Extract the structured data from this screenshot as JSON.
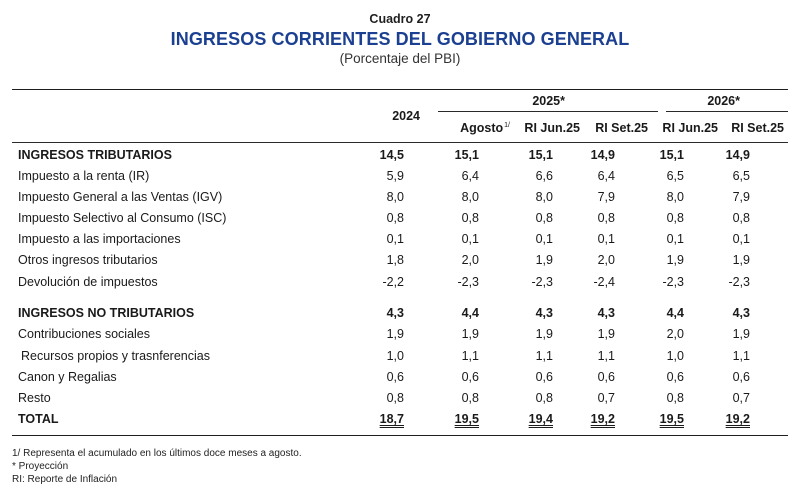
{
  "header": {
    "cuadro": "Cuadro 27",
    "title": "INGRESOS CORRIENTES DEL GOBIERNO GENERAL",
    "subtitle": "(Porcentaje del PBI)"
  },
  "columns": {
    "year_2024": "2024",
    "group_2025": "2025*",
    "group_2026": "2026*",
    "agosto": "Agosto",
    "agosto_note": "1/",
    "ri_jun_25": "RI Jun.25",
    "ri_set_25": "RI Set.25",
    "ri_jun_25_b": "RI Jun.25",
    "ri_set_25_b": "RI Set.25"
  },
  "rows": [
    {
      "label": "INGRESOS TRIBUTARIOS",
      "values": [
        "14,5",
        "15,1",
        "15,1",
        "14,9",
        "15,1",
        "14,9"
      ]
    },
    {
      "label": "Impuesto a la renta (IR)",
      "values": [
        "5,9",
        "6,4",
        "6,6",
        "6,4",
        "6,5",
        "6,5"
      ]
    },
    {
      "label": "Impuesto General a las Ventas (IGV)",
      "values": [
        "8,0",
        "8,0",
        "8,0",
        "7,9",
        "8,0",
        "7,9"
      ]
    },
    {
      "label": "Impuesto Selectivo al Consumo (ISC)",
      "values": [
        "0,8",
        "0,8",
        "0,8",
        "0,8",
        "0,8",
        "0,8"
      ]
    },
    {
      "label": "Impuesto a las importaciones",
      "values": [
        "0,1",
        "0,1",
        "0,1",
        "0,1",
        "0,1",
        "0,1"
      ]
    },
    {
      "label": "Otros ingresos tributarios",
      "values": [
        "1,8",
        "2,0",
        "1,9",
        "2,0",
        "1,9",
        "1,9"
      ]
    },
    {
      "label": "Devolución de impuestos",
      "values": [
        "-2,2",
        "-2,3",
        "-2,3",
        "-2,4",
        "-2,3",
        "-2,3"
      ]
    },
    {
      "label": "INGRESOS NO TRIBUTARIOS",
      "values": [
        "4,3",
        "4,4",
        "4,3",
        "4,3",
        "4,4",
        "4,3"
      ]
    },
    {
      "label": "Contribuciones sociales",
      "values": [
        "1,9",
        "1,9",
        "1,9",
        "1,9",
        "2,0",
        "1,9"
      ]
    },
    {
      "label": "Recursos propios y trasnferencias",
      "values": [
        "1,0",
        "1,1",
        "1,1",
        "1,1",
        "1,0",
        "1,1"
      ]
    },
    {
      "label": "Canon y Regalias",
      "values": [
        "0,6",
        "0,6",
        "0,6",
        "0,6",
        "0,6",
        "0,6"
      ]
    },
    {
      "label": "Resto",
      "values": [
        "0,8",
        "0,8",
        "0,8",
        "0,7",
        "0,8",
        "0,7"
      ]
    },
    {
      "label": "TOTAL",
      "values": [
        "18,7",
        "19,5",
        "19,4",
        "19,2",
        "19,5",
        "19,2"
      ]
    }
  ],
  "footnotes": [
    "1/  Representa el acumulado en los últimos doce meses a agosto.",
    "*   Proyección",
    "RI: Reporte de Inflación"
  ]
}
